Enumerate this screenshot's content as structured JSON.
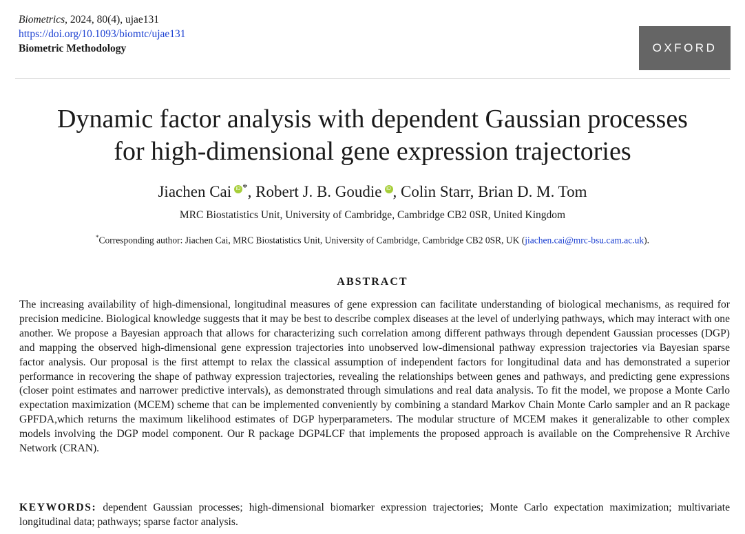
{
  "header": {
    "journal": "Biometrics",
    "citation": ", 2024, 80(4), ujae131",
    "doi": "https://doi.org/10.1093/biomtc/ujae131",
    "section": "Biometric Methodology",
    "publisher_logo": "OXFORD",
    "logo_color": "#656565"
  },
  "title": {
    "line1": "Dynamic factor analysis with dependent Gaussian processes",
    "line2": "for high-dimensional gene expression trajectories"
  },
  "authors": {
    "a1": "Jiachen Cai",
    "a1_mark": "*",
    "a2": "Robert J. B. Goudie",
    "a3": "Colin Starr",
    "a4": "Brian D. M. Tom",
    "orcid_icon": "orcid-icon",
    "orcid_color": "#a6ce39"
  },
  "affiliation": "MRC Biostatistics Unit, University of Cambridge, Cambridge CB2 0SR, United Kingdom",
  "corresponding": {
    "mark": "*",
    "text": "Corresponding author: Jiachen Cai, MRC Biostatistics Unit, University of Cambridge, Cambridge CB2 0SR, UK (",
    "email": "jiachen.cai@mrc-bsu.cam.ac.uk",
    "close": ")."
  },
  "abstract": {
    "heading": "ABSTRACT",
    "body": "The increasing availability of high-dimensional, longitudinal measures of gene expression can facilitate understanding of biological mechanisms, as required for precision medicine. Biological knowledge suggests that it may be best to describe complex diseases at the level of underlying pathways, which may interact with one another. We propose a Bayesian approach that allows for characterizing such correlation among different pathways through dependent Gaussian processes (DGP) and mapping the observed high-dimensional gene expression trajectories into unobserved low-dimensional pathway expression trajectories via Bayesian sparse factor analysis. Our proposal is the first attempt to relax the classical assumption of independent factors for longitudinal data and has demonstrated a superior performance in recovering the shape of pathway expression trajectories, revealing the relationships between genes and pathways, and predicting gene expressions (closer point estimates and narrower predictive intervals), as demonstrated through simulations and real data analysis. To fit the model, we propose a Monte Carlo expectation maximization (MCEM) scheme that can be implemented conveniently by combining a standard Markov Chain Monte Carlo sampler and an R package GPFDA,which returns the maximum likelihood estimates of DGP hyperparameters. The modular structure of MCEM makes it generalizable to other complex models involving the DGP model component. Our R package DGP4LCF that implements the proposed approach is available on the Comprehensive R Archive Network (CRAN)."
  },
  "keywords": {
    "label": "KEYWORDS:",
    "text": "dependent Gaussian processes; high-dimensional biomarker expression trajectories; Monte Carlo expectation maximization; multivariate longitudinal data; pathways; sparse factor analysis."
  }
}
